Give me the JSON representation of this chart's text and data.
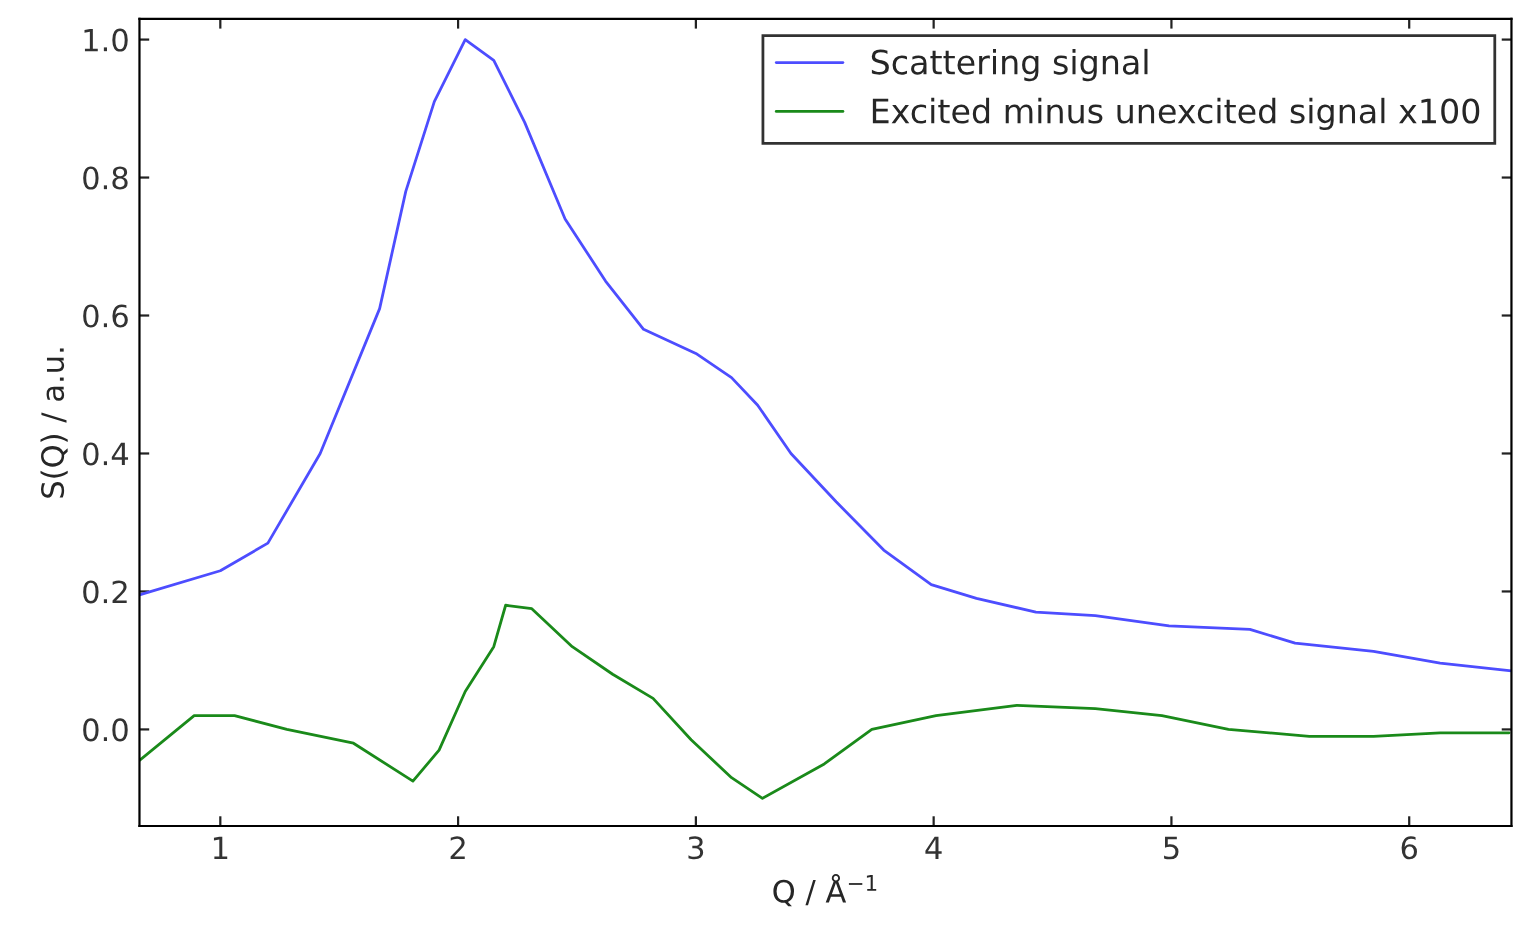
{
  "chart_data": {
    "type": "line",
    "xlabel": "Q / Å$^{−1}$",
    "ylabel": "S(Q) / a.u.",
    "xlim": [
      0.66,
      6.43
    ],
    "ylim": [
      -0.14,
      1.03
    ],
    "xticks": [
      1,
      2,
      3,
      4,
      5,
      6
    ],
    "yticks": [
      {
        "value": 0.0,
        "label": "0.0"
      },
      {
        "value": 0.2,
        "label": "0.2"
      },
      {
        "value": 0.4,
        "label": "0.4"
      },
      {
        "value": 0.6,
        "label": "0.6"
      },
      {
        "value": 0.8,
        "label": "0.8"
      },
      {
        "value": 1.0,
        "label": "1.0"
      }
    ],
    "grid": false,
    "legend": "top right",
    "marker": "none",
    "line_style": "solid",
    "series": [
      {
        "name": "Scattering signal",
        "color": "#4d4dff",
        "x": [
          0.66,
          1.0,
          1.2,
          1.42,
          1.67,
          1.78,
          1.9,
          2.03,
          2.15,
          2.28,
          2.45,
          2.62,
          2.78,
          3.0,
          3.15,
          3.26,
          3.4,
          3.59,
          3.79,
          3.99,
          4.18,
          4.43,
          4.68,
          4.99,
          5.33,
          5.52,
          5.85,
          6.13,
          6.43
        ],
        "values": [
          0.195,
          0.23,
          0.27,
          0.4,
          0.61,
          0.78,
          0.91,
          1.0,
          0.97,
          0.88,
          0.74,
          0.65,
          0.58,
          0.545,
          0.51,
          0.47,
          0.4,
          0.33,
          0.26,
          0.21,
          0.19,
          0.17,
          0.165,
          0.15,
          0.145,
          0.125,
          0.113,
          0.096,
          0.085
        ]
      },
      {
        "name": "Excited minus unexcited signal x100",
        "color": "#1a8a1a",
        "x": [
          0.66,
          0.89,
          1.06,
          1.28,
          1.56,
          1.81,
          1.92,
          2.03,
          2.15,
          2.2,
          2.31,
          2.48,
          2.65,
          2.82,
          2.98,
          3.15,
          3.28,
          3.54,
          3.74,
          4.01,
          4.35,
          4.68,
          4.96,
          5.24,
          5.58,
          5.85,
          6.13,
          6.42
        ],
        "values": [
          -0.045,
          0.02,
          0.02,
          0.0,
          -0.02,
          -0.075,
          -0.03,
          0.055,
          0.12,
          0.18,
          0.175,
          0.12,
          0.08,
          0.045,
          -0.015,
          -0.07,
          -0.1,
          -0.05,
          0.0,
          0.02,
          0.035,
          0.03,
          0.02,
          0.0,
          -0.01,
          -0.01,
          -0.005,
          -0.005
        ]
      }
    ]
  }
}
